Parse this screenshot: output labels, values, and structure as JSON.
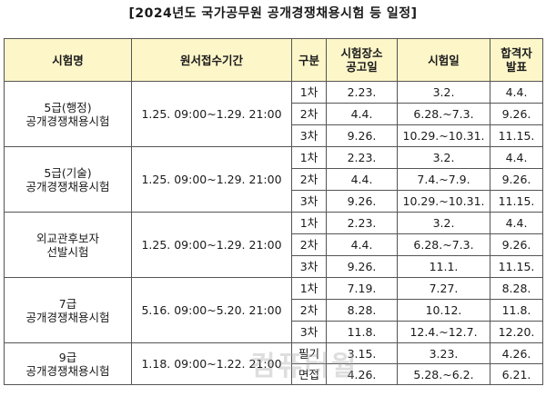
{
  "title": "[2024년도 국가공무원 공개경쟁채용시험 등 일정]",
  "headers": {
    "exam_name": "시험명",
    "application_period": "원서접수기간",
    "stage": "구분",
    "venue_notice_line1": "시험장소",
    "venue_notice_line2": "공고일",
    "exam_date": "시험일",
    "pass_announce_line1": "합격자",
    "pass_announce_line2": "발표"
  },
  "exams": [
    {
      "name_line1": "5급(행정)",
      "name_line2": "공개경쟁채용시험",
      "application_period": "1.25. 09:00~1.29. 21:00",
      "stages": [
        {
          "stage": "1차",
          "venue_notice": "2.23.",
          "exam_date": "3.2.",
          "pass_announce": "4.4."
        },
        {
          "stage": "2차",
          "venue_notice": "4.4.",
          "exam_date": "6.28.~7.3.",
          "pass_announce": "9.26."
        },
        {
          "stage": "3차",
          "venue_notice": "9.26.",
          "exam_date": "10.29.~10.31.",
          "pass_announce": "11.15."
        }
      ]
    },
    {
      "name_line1": "5급(기술)",
      "name_line2": "공개경쟁채용시험",
      "application_period": "1.25. 09:00~1.29. 21:00",
      "stages": [
        {
          "stage": "1차",
          "venue_notice": "2.23.",
          "exam_date": "3.2.",
          "pass_announce": "4.4."
        },
        {
          "stage": "2차",
          "venue_notice": "4.4.",
          "exam_date": "7.4.~7.9.",
          "pass_announce": "9.26."
        },
        {
          "stage": "3차",
          "venue_notice": "9.26.",
          "exam_date": "10.29.~10.31.",
          "pass_announce": "11.15."
        }
      ]
    },
    {
      "name_line1": "외교관후보자",
      "name_line2": "선발시험",
      "application_period": "1.25. 09:00~1.29. 21:00",
      "stages": [
        {
          "stage": "1차",
          "venue_notice": "2.23.",
          "exam_date": "3.2.",
          "pass_announce": "4.4."
        },
        {
          "stage": "2차",
          "venue_notice": "4.4.",
          "exam_date": "6.28.~7.3.",
          "pass_announce": "9.26."
        },
        {
          "stage": "3차",
          "venue_notice": "9.26.",
          "exam_date": "11.1.",
          "pass_announce": "11.15."
        }
      ]
    },
    {
      "name_line1": "7급",
      "name_line2": "공개경쟁채용시험",
      "application_period": "5.16. 09:00~5.20. 21:00",
      "stages": [
        {
          "stage": "1차",
          "venue_notice": "7.19.",
          "exam_date": "7.27.",
          "pass_announce": "8.28."
        },
        {
          "stage": "2차",
          "venue_notice": "8.28.",
          "exam_date": "10.12.",
          "pass_announce": "11.8."
        },
        {
          "stage": "3차",
          "venue_notice": "11.8.",
          "exam_date": "12.4.~12.7.",
          "pass_announce": "12.20."
        }
      ]
    },
    {
      "name_line1": "9급",
      "name_line2": "공개경쟁채용시험",
      "application_period": "1.18. 09:00~1.22. 21:00",
      "stages": [
        {
          "stage": "필기",
          "venue_notice": "3.15.",
          "exam_date": "3.23.",
          "pass_announce": "4.26."
        },
        {
          "stage": "면접",
          "venue_notice": "4.26.",
          "exam_date": "5.28.~6.2.",
          "pass_announce": "6.21."
        }
      ]
    }
  ],
  "watermark": "컴퓨터월"
}
